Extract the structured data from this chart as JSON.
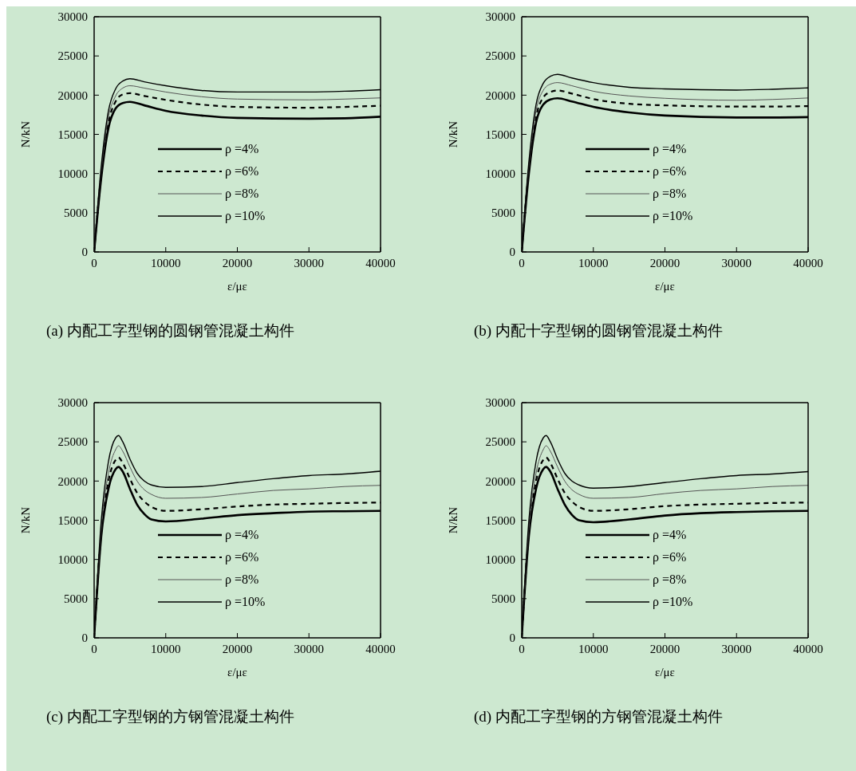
{
  "chart_data": [
    {
      "type": "line",
      "title": "(a)  内配工字型钢的圆钢管混凝土构件",
      "xlabel": "ε/με",
      "ylabel": "N/kN",
      "x": [
        0,
        1000,
        2000,
        3000,
        4000,
        5000,
        7000,
        10000,
        15000,
        20000,
        30000,
        35000,
        40000
      ],
      "xlim": [
        0,
        40000
      ],
      "xticks": [
        0,
        10000,
        20000,
        30000,
        40000
      ],
      "ylim": [
        0,
        30000
      ],
      "yticks": [
        0,
        5000,
        10000,
        15000,
        20000,
        25000,
        30000
      ],
      "grid": false,
      "legend": "bottom",
      "marker": "none",
      "series": [
        {
          "name": "ρ =4%",
          "color": "#000000",
          "line_style": "solid",
          "values": [
            0,
            9500,
            15800,
            18300,
            19000,
            19150,
            18700,
            18000,
            17400,
            17100,
            17000,
            17050,
            17250
          ]
        },
        {
          "name": "ρ =6%",
          "color": "#000000",
          "line_style": "dashed",
          "values": [
            0,
            10000,
            16500,
            19200,
            20100,
            20250,
            19900,
            19400,
            18800,
            18500,
            18400,
            18500,
            18650
          ]
        },
        {
          "name": "ρ =8%",
          "color": "#555555",
          "line_style": "solid",
          "values": [
            0,
            10500,
            17200,
            19900,
            20900,
            21200,
            20900,
            20400,
            19800,
            19500,
            19400,
            19500,
            19650
          ]
        },
        {
          "name": "ρ =10%",
          "color": "#000000",
          "line_style": "solid",
          "values": [
            0,
            11000,
            18000,
            20800,
            21800,
            22100,
            21700,
            21200,
            20600,
            20400,
            20400,
            20500,
            20700
          ]
        }
      ]
    },
    {
      "type": "line",
      "title": "(b)  内配十字型钢的圆钢管混凝土构件",
      "xlabel": "ε/με",
      "ylabel": "N/kN",
      "x": [
        0,
        1000,
        2000,
        3000,
        4000,
        5000,
        7000,
        10000,
        15000,
        20000,
        30000,
        35000,
        40000
      ],
      "xlim": [
        0,
        40000
      ],
      "xticks": [
        0,
        10000,
        20000,
        30000,
        40000
      ],
      "ylim": [
        0,
        30000
      ],
      "yticks": [
        0,
        5000,
        10000,
        15000,
        20000,
        25000,
        30000
      ],
      "grid": false,
      "legend": "bottom",
      "marker": "none",
      "series": [
        {
          "name": "ρ =4%",
          "color": "#000000",
          "line_style": "solid",
          "values": [
            0,
            10000,
            16500,
            18800,
            19450,
            19600,
            19200,
            18500,
            17800,
            17400,
            17150,
            17150,
            17200
          ]
        },
        {
          "name": "ρ =6%",
          "color": "#000000",
          "line_style": "dashed",
          "values": [
            0,
            10500,
            17200,
            19700,
            20400,
            20600,
            20200,
            19500,
            18900,
            18700,
            18550,
            18550,
            18600
          ]
        },
        {
          "name": "ρ =8%",
          "color": "#555555",
          "line_style": "solid",
          "values": [
            0,
            11000,
            18000,
            20600,
            21400,
            21600,
            21200,
            20500,
            19900,
            19600,
            19350,
            19450,
            19640
          ]
        },
        {
          "name": "ρ =10%",
          "color": "#000000",
          "line_style": "solid",
          "values": [
            0,
            11500,
            18800,
            21500,
            22400,
            22650,
            22200,
            21600,
            21000,
            20800,
            20650,
            20750,
            20930
          ]
        }
      ]
    },
    {
      "type": "line",
      "title": "(c)  内配工字型钢的方钢管混凝土构件",
      "xlabel": "ε/με",
      "ylabel": "N/kN",
      "x": [
        0,
        1000,
        2000,
        3000,
        3400,
        4000,
        5000,
        6000,
        7000,
        8000,
        10000,
        15000,
        20000,
        25000,
        30000,
        35000,
        40000
      ],
      "xlim": [
        0,
        40000
      ],
      "xticks": [
        0,
        10000,
        20000,
        30000,
        40000
      ],
      "ylim": [
        0,
        30000
      ],
      "yticks": [
        0,
        5000,
        10000,
        15000,
        20000,
        25000,
        30000
      ],
      "grid": false,
      "legend": "bottom",
      "marker": "none",
      "series": [
        {
          "name": "ρ =4%",
          "color": "#000000",
          "line_style": "solid",
          "values": [
            0,
            13000,
            19000,
            21500,
            21800,
            21200,
            19000,
            17000,
            15800,
            15100,
            14850,
            15200,
            15650,
            15900,
            16100,
            16150,
            16200
          ]
        },
        {
          "name": "ρ =6%",
          "color": "#000000",
          "line_style": "dashed",
          "values": [
            0,
            13500,
            20000,
            22700,
            23000,
            22300,
            20300,
            18500,
            17400,
            16700,
            16200,
            16400,
            16750,
            17000,
            17100,
            17200,
            17250
          ]
        },
        {
          "name": "ρ =8%",
          "color": "#555555",
          "line_style": "solid",
          "values": [
            0,
            14000,
            21000,
            24000,
            24500,
            23800,
            21800,
            20000,
            18900,
            18300,
            17800,
            17900,
            18350,
            18800,
            19000,
            19300,
            19450
          ]
        },
        {
          "name": "ρ =10%",
          "color": "#000000",
          "line_style": "solid",
          "values": [
            0,
            15000,
            22500,
            25500,
            25800,
            25000,
            22800,
            21000,
            20000,
            19500,
            19200,
            19300,
            19800,
            20300,
            20700,
            20900,
            21250
          ]
        }
      ]
    },
    {
      "type": "line",
      "title": "(d)  内配工字型钢的方钢管混凝土构件",
      "xlabel": "ε/με",
      "ylabel": "N/kN",
      "x": [
        0,
        1000,
        2000,
        3000,
        3400,
        4000,
        5000,
        6000,
        7000,
        8000,
        10000,
        15000,
        20000,
        25000,
        30000,
        35000,
        40000
      ],
      "xlim": [
        0,
        40000
      ],
      "xticks": [
        0,
        10000,
        20000,
        30000,
        40000
      ],
      "ylim": [
        0,
        30000
      ],
      "yticks": [
        0,
        5000,
        10000,
        15000,
        20000,
        25000,
        30000
      ],
      "grid": false,
      "legend": "bottom",
      "marker": "none",
      "series": [
        {
          "name": "ρ =4%",
          "color": "#000000",
          "line_style": "solid",
          "values": [
            0,
            13000,
            19000,
            21500,
            21800,
            21200,
            19000,
            17000,
            15700,
            15000,
            14750,
            15100,
            15600,
            15900,
            16050,
            16150,
            16200
          ]
        },
        {
          "name": "ρ =6%",
          "color": "#000000",
          "line_style": "dashed",
          "values": [
            0,
            13500,
            20000,
            22700,
            23000,
            22300,
            20300,
            18500,
            17400,
            16700,
            16200,
            16400,
            16800,
            17000,
            17100,
            17200,
            17250
          ]
        },
        {
          "name": "ρ =8%",
          "color": "#555555",
          "line_style": "solid",
          "values": [
            0,
            14000,
            21000,
            24000,
            24500,
            23800,
            21800,
            20000,
            18900,
            18300,
            17800,
            17900,
            18400,
            18800,
            19000,
            19300,
            19450
          ]
        },
        {
          "name": "ρ =10%",
          "color": "#000000",
          "line_style": "solid",
          "values": [
            0,
            15000,
            22500,
            25500,
            25800,
            25000,
            22800,
            21000,
            20000,
            19500,
            19100,
            19300,
            19800,
            20300,
            20700,
            20900,
            21200
          ]
        }
      ]
    }
  ]
}
